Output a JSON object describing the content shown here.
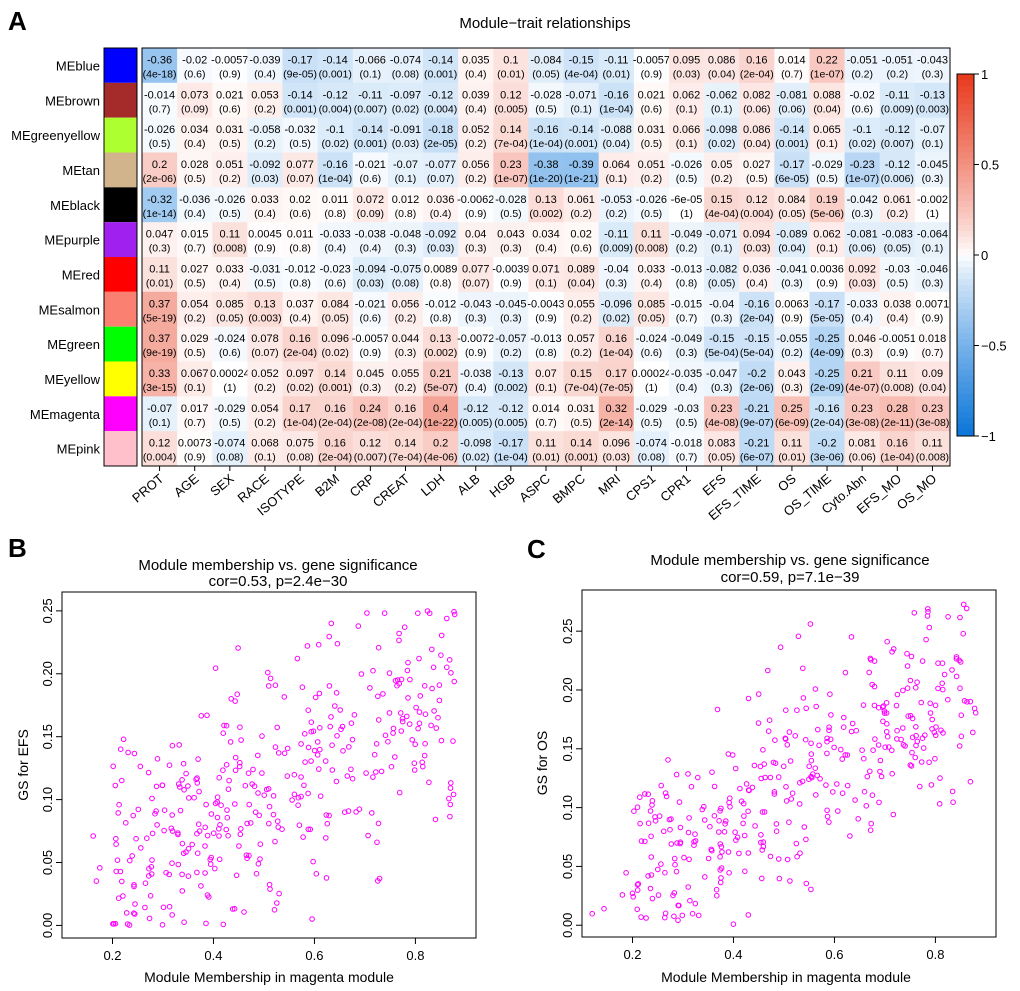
{
  "panels": {
    "a": "A",
    "b": "B",
    "c": "C"
  },
  "chart_data": [
    {
      "type": "heatmap",
      "title": "Module−trait relationships",
      "modules": [
        "MEblue",
        "MEbrown",
        "MEgreenyellow",
        "MEtan",
        "MEblack",
        "MEpurple",
        "MEred",
        "MEsalmon",
        "MEgreen",
        "MEyellow",
        "MEmagenta",
        "MEpink"
      ],
      "module_colors": [
        "#0000ff",
        "#a52a2a",
        "#adff2f",
        "#d2b48c",
        "#000000",
        "#a020f0",
        "#ff0000",
        "#fa8072",
        "#00ff00",
        "#ffff00",
        "#ff00ff",
        "#ffc0cb"
      ],
      "traits": [
        "PROT",
        "AGE",
        "SEX",
        "RACE",
        "ISOTYPE",
        "B2M",
        "CRP",
        "CREAT",
        "LDH",
        "ALB",
        "HGB",
        "ASPC",
        "BMPC",
        "MRI",
        "CPS1",
        "CPR1",
        "EFS",
        "EFS_TIME",
        "OS",
        "OS_TIME",
        "Cyto.Abn",
        "EFS_MO",
        "OS_MO"
      ],
      "r": [
        [
          "-0.36",
          "-0.02",
          "-0.0057",
          "-0.039",
          "-0.17",
          "-0.14",
          "-0.066",
          "-0.074",
          "-0.14",
          "0.035",
          "0.1",
          "-0.084",
          "-0.15",
          "-0.11",
          "-0.0057",
          "0.095",
          "0.086",
          "0.16",
          "0.014",
          "0.22",
          "-0.051",
          "-0.051",
          "-0.043"
        ],
        [
          "-0.014",
          "0.073",
          "0.021",
          "0.053",
          "-0.14",
          "-0.12",
          "-0.11",
          "-0.097",
          "-0.12",
          "0.039",
          "0.12",
          "-0.028",
          "-0.071",
          "-0.16",
          "0.021",
          "0.062",
          "-0.062",
          "0.082",
          "-0.081",
          "0.088",
          "-0.02",
          "-0.11",
          "-0.13"
        ],
        [
          "-0.026",
          "0.034",
          "0.031",
          "-0.058",
          "-0.032",
          "-0.1",
          "-0.14",
          "-0.091",
          "-0.18",
          "0.052",
          "0.14",
          "-0.16",
          "-0.14",
          "-0.088",
          "0.031",
          "0.066",
          "-0.098",
          "0.086",
          "-0.14",
          "0.065",
          "-0.1",
          "-0.12",
          "-0.07"
        ],
        [
          "0.2",
          "0.028",
          "0.051",
          "-0.092",
          "0.077",
          "-0.16",
          "-0.021",
          "-0.07",
          "-0.077",
          "0.056",
          "0.23",
          "-0.38",
          "-0.39",
          "0.064",
          "0.051",
          "-0.026",
          "0.05",
          "0.027",
          "-0.17",
          "-0.029",
          "-0.23",
          "-0.12",
          "-0.045"
        ],
        [
          "-0.32",
          "-0.036",
          "-0.026",
          "0.033",
          "0.02",
          "0.011",
          "0.072",
          "0.012",
          "0.036",
          "-0.0062",
          "-0.028",
          "0.13",
          "0.061",
          "-0.053",
          "-0.026",
          "-6e-05",
          "0.15",
          "0.12",
          "0.084",
          "0.19",
          "-0.042",
          "0.061",
          "-0.002"
        ],
        [
          "0.047",
          "0.015",
          "0.11",
          "0.0045",
          "0.011",
          "-0.033",
          "-0.038",
          "-0.048",
          "-0.092",
          "0.04",
          "0.043",
          "0.034",
          "0.02",
          "-0.11",
          "0.11",
          "-0.049",
          "-0.071",
          "0.094",
          "-0.089",
          "0.062",
          "-0.081",
          "-0.083",
          "-0.064"
        ],
        [
          "0.11",
          "0.027",
          "0.033",
          "-0.031",
          "-0.012",
          "-0.023",
          "-0.094",
          "-0.075",
          "0.0089",
          "0.077",
          "-0.0039",
          "0.071",
          "0.089",
          "-0.04",
          "0.033",
          "-0.013",
          "-0.082",
          "0.036",
          "-0.041",
          "0.0036",
          "0.092",
          "-0.03",
          "-0.046"
        ],
        [
          "0.37",
          "0.054",
          "0.085",
          "0.13",
          "0.037",
          "0.084",
          "-0.021",
          "0.056",
          "-0.012",
          "-0.043",
          "-0.045",
          "-0.0043",
          "0.055",
          "-0.096",
          "0.085",
          "-0.015",
          "-0.04",
          "-0.16",
          "0.0063",
          "-0.17",
          "-0.033",
          "0.038",
          "0.0071"
        ],
        [
          "0.37",
          "0.029",
          "-0.024",
          "0.078",
          "0.16",
          "0.096",
          "-0.0057",
          "0.044",
          "0.13",
          "-0.0072",
          "-0.057",
          "-0.013",
          "0.057",
          "0.16",
          "-0.024",
          "-0.049",
          "-0.15",
          "-0.15",
          "-0.055",
          "-0.25",
          "0.046",
          "-0.0051",
          "0.018"
        ],
        [
          "0.33",
          "0.067",
          "0.00024",
          "0.052",
          "0.097",
          "0.14",
          "0.045",
          "0.055",
          "0.21",
          "-0.038",
          "-0.13",
          "0.07",
          "0.15",
          "0.17",
          "0.00024",
          "-0.035",
          "-0.047",
          "-0.2",
          "0.043",
          "-0.25",
          "0.21",
          "0.11",
          "0.09"
        ],
        [
          "-0.07",
          "0.017",
          "-0.029",
          "0.054",
          "0.17",
          "0.16",
          "0.24",
          "0.16",
          "0.4",
          "-0.12",
          "-0.12",
          "0.014",
          "0.031",
          "0.32",
          "-0.029",
          "-0.03",
          "0.23",
          "-0.21",
          "0.25",
          "-0.16",
          "0.23",
          "0.28",
          "0.23"
        ],
        [
          "0.12",
          "0.0073",
          "-0.074",
          "0.068",
          "0.075",
          "0.16",
          "0.12",
          "0.14",
          "0.2",
          "-0.098",
          "-0.17",
          "0.11",
          "0.14",
          "0.096",
          "-0.074",
          "-0.018",
          "0.083",
          "-0.21",
          "0.11",
          "-0.2",
          "0.081",
          "0.16",
          "0.11"
        ]
      ],
      "p": [
        [
          "(4e-18)",
          "(0.6)",
          "(0.9)",
          "(0.4)",
          "(9e-05)",
          "(0.001)",
          "(0.1)",
          "(0.08)",
          "(0.001)",
          "(0.4)",
          "(0.01)",
          "(0.05)",
          "(4e-04)",
          "(0.01)",
          "(0.9)",
          "(0.03)",
          "(0.04)",
          "(2e-04)",
          "(0.7)",
          "(1e-07)",
          "(0.2)",
          "(0.2)",
          "(0.3)"
        ],
        [
          "(0.7)",
          "(0.09)",
          "(0.6)",
          "(0.2)",
          "(0.001)",
          "(0.004)",
          "(0.007)",
          "(0.02)",
          "(0.004)",
          "(0.4)",
          "(0.005)",
          "(0.5)",
          "(0.1)",
          "(1e-04)",
          "(0.6)",
          "(0.1)",
          "(0.1)",
          "(0.06)",
          "(0.06)",
          "(0.04)",
          "(0.6)",
          "(0.009)",
          "(0.003)"
        ],
        [
          "(0.5)",
          "(0.4)",
          "(0.5)",
          "(0.2)",
          "(0.5)",
          "(0.02)",
          "(0.001)",
          "(0.03)",
          "(2e-05)",
          "(0.2)",
          "(7e-04)",
          "(1e-04)",
          "(0.001)",
          "(0.04)",
          "(0.5)",
          "(0.1)",
          "(0.02)",
          "(0.04)",
          "(0.001)",
          "(0.1)",
          "(0.02)",
          "(0.007)",
          "(0.1)"
        ],
        [
          "(2e-06)",
          "(0.5)",
          "(0.2)",
          "(0.03)",
          "(0.07)",
          "(1e-04)",
          "(0.6)",
          "(0.1)",
          "(0.07)",
          "(0.2)",
          "(1e-07)",
          "(1e-20)",
          "(1e-21)",
          "(0.1)",
          "(0.2)",
          "(0.5)",
          "(0.2)",
          "(0.5)",
          "(6e-05)",
          "(0.5)",
          "(1e-07)",
          "(0.006)",
          "(0.3)"
        ],
        [
          "(1e-14)",
          "(0.4)",
          "(0.5)",
          "(0.4)",
          "(0.6)",
          "(0.8)",
          "(0.09)",
          "(0.8)",
          "(0.4)",
          "(0.9)",
          "(0.5)",
          "(0.002)",
          "(0.2)",
          "(0.2)",
          "(0.5)",
          "(1)",
          "(4e-04)",
          "(0.004)",
          "(0.05)",
          "(5e-06)",
          "(0.3)",
          "(0.2)",
          "(1)"
        ],
        [
          "(0.3)",
          "(0.7)",
          "(0.008)",
          "(0.9)",
          "(0.8)",
          "(0.4)",
          "(0.4)",
          "(0.3)",
          "(0.03)",
          "(0.3)",
          "(0.3)",
          "(0.4)",
          "(0.6)",
          "(0.009)",
          "(0.008)",
          "(0.2)",
          "(0.1)",
          "(0.03)",
          "(0.04)",
          "(0.1)",
          "(0.06)",
          "(0.05)",
          "(0.1)"
        ],
        [
          "(0.01)",
          "(0.5)",
          "(0.4)",
          "(0.5)",
          "(0.8)",
          "(0.6)",
          "(0.03)",
          "(0.08)",
          "(0.8)",
          "(0.07)",
          "(0.9)",
          "(0.1)",
          "(0.04)",
          "(0.3)",
          "(0.4)",
          "(0.8)",
          "(0.05)",
          "(0.4)",
          "(0.3)",
          "(0.9)",
          "(0.03)",
          "(0.5)",
          "(0.3)"
        ],
        [
          "(5e-19)",
          "(0.2)",
          "(0.05)",
          "(0.003)",
          "(0.4)",
          "(0.05)",
          "(0.6)",
          "(0.2)",
          "(0.8)",
          "(0.3)",
          "(0.3)",
          "(0.9)",
          "(0.2)",
          "(0.02)",
          "(0.05)",
          "(0.7)",
          "(0.3)",
          "(2e-04)",
          "(0.9)",
          "(5e-05)",
          "(0.4)",
          "(0.4)",
          "(0.9)"
        ],
        [
          "(9e-19)",
          "(0.5)",
          "(0.6)",
          "(0.07)",
          "(2e-04)",
          "(0.02)",
          "(0.9)",
          "(0.3)",
          "(0.002)",
          "(0.9)",
          "(0.2)",
          "(0.8)",
          "(0.2)",
          "(1e-04)",
          "(0.6)",
          "(0.3)",
          "(5e-04)",
          "(5e-04)",
          "(0.2)",
          "(4e-09)",
          "(0.3)",
          "(0.9)",
          "(0.7)"
        ],
        [
          "(3e-15)",
          "(0.1)",
          "(1)",
          "(0.2)",
          "(0.02)",
          "(0.001)",
          "(0.3)",
          "(0.2)",
          "(5e-07)",
          "(0.4)",
          "(0.002)",
          "(0.1)",
          "(7e-04)",
          "(7e-05)",
          "(1)",
          "(0.4)",
          "(0.3)",
          "(2e-06)",
          "(0.3)",
          "(2e-09)",
          "(4e-07)",
          "(0.008)",
          "(0.04)"
        ],
        [
          "(0.1)",
          "(0.7)",
          "(0.5)",
          "(0.2)",
          "(1e-04)",
          "(2e-04)",
          "(2e-08)",
          "(2e-04)",
          "(1e-22)",
          "(0.005)",
          "(0.005)",
          "(0.7)",
          "(0.5)",
          "(2e-14)",
          "(0.5)",
          "(0.5)",
          "(4e-08)",
          "(9e-07)",
          "(6e-09)",
          "(2e-04)",
          "(3e-08)",
          "(2e-11)",
          "(3e-08)"
        ],
        [
          "(0.004)",
          "(0.9)",
          "(0.08)",
          "(0.1)",
          "(0.08)",
          "(2e-04)",
          "(0.007)",
          "(7e-04)",
          "(4e-06)",
          "(0.02)",
          "(1e-04)",
          "(0.01)",
          "(0.001)",
          "(0.03)",
          "(0.08)",
          "(0.7)",
          "(0.05)",
          "(6e-07)",
          "(0.01)",
          "(3e-06)",
          "(0.06)",
          "(1e-04)",
          "(0.008)"
        ]
      ],
      "legend": {
        "ticks": [
          "1",
          "0.5",
          "0",
          "−0.5",
          "−1"
        ],
        "range": [
          -1,
          1
        ],
        "colors": {
          "low": "#0a75d9",
          "mid": "#ffffff",
          "high": "#e8391c"
        }
      }
    },
    {
      "type": "scatter",
      "title": "Module membership vs. gene significance",
      "subtitle": "cor=0.53, p=2.4e−30",
      "xlabel": "Module Membership in magenta module",
      "ylabel": "GS for EFS",
      "xlim": [
        0.1,
        0.92
      ],
      "ylim": [
        -0.01,
        0.265
      ],
      "xticks": [
        "0.2",
        "0.4",
        "0.6",
        "0.8"
      ],
      "xtick_values": [
        0.2,
        0.4,
        0.6,
        0.8
      ],
      "yticks": [
        "0.00",
        "0.05",
        "0.10",
        "0.15",
        "0.20",
        "0.25"
      ],
      "ytick_values": [
        0.0,
        0.05,
        0.1,
        0.15,
        0.2,
        0.25
      ],
      "point_color": "#ff00ff",
      "n_points": 380,
      "seed": 7,
      "slope": 0.213,
      "intercept": 0.0,
      "noise": 0.05
    },
    {
      "type": "scatter",
      "title": "Module membership vs. gene significance",
      "subtitle": "cor=0.59, p=7.1e−39",
      "xlabel": "Module Membership in magenta module",
      "ylabel": "GS for OS",
      "xlim": [
        0.1,
        0.92
      ],
      "ylim": [
        -0.01,
        0.285
      ],
      "xticks": [
        "0.2",
        "0.4",
        "0.6",
        "0.8"
      ],
      "xtick_values": [
        0.2,
        0.4,
        0.6,
        0.8
      ],
      "yticks": [
        "0.00",
        "0.05",
        "0.10",
        "0.15",
        "0.20",
        "0.25"
      ],
      "ytick_values": [
        0.0,
        0.05,
        0.1,
        0.15,
        0.2,
        0.25
      ],
      "point_color": "#ff00ff",
      "n_points": 380,
      "seed": 19,
      "slope": 0.24,
      "intercept": 0.0,
      "noise": 0.045
    }
  ]
}
